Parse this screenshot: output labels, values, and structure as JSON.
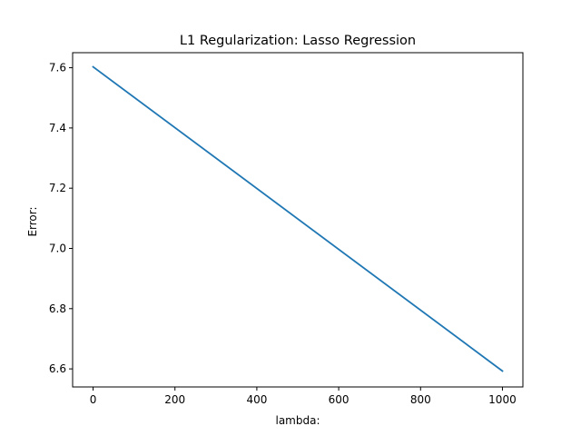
{
  "chart_data": {
    "type": "line",
    "title": "L1 Regularization: Lasso Regression",
    "xlabel": "lambda:",
    "ylabel": "Error:",
    "xlim": [
      -50,
      1050
    ],
    "ylim": [
      6.54,
      7.65
    ],
    "grid": false,
    "x_ticks": [
      0,
      200,
      400,
      600,
      800,
      1000
    ],
    "x_tick_labels": [
      "0",
      "200",
      "400",
      "600",
      "800",
      "1000"
    ],
    "y_ticks": [
      6.6,
      6.8,
      7.0,
      7.2,
      7.4,
      7.6
    ],
    "y_tick_labels": [
      "6.6",
      "6.8",
      "7.0",
      "7.2",
      "7.4",
      "7.6"
    ],
    "series": [
      {
        "color": "#1f77b4",
        "x": [
          0,
          1000
        ],
        "y": [
          7.603,
          6.593
        ]
      }
    ]
  }
}
